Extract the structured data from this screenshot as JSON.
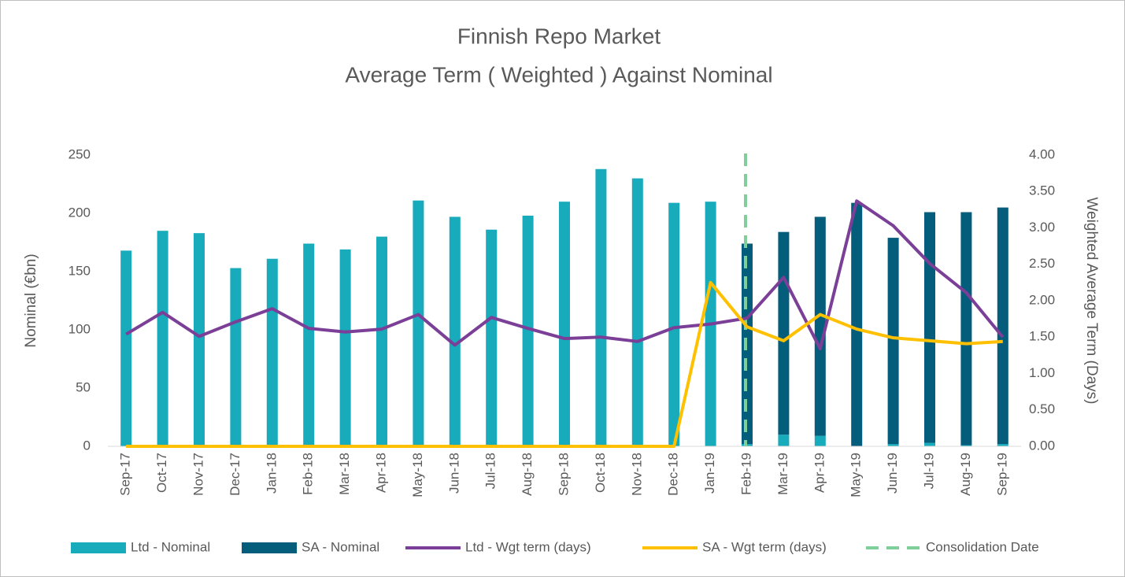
{
  "chart_data": {
    "type": "bar-line",
    "title": "Finnish Repo Market",
    "subtitle": "Average Term ( Weighted ) Against Nominal",
    "y_label": "Nominal (€bn)",
    "y2_label": "Weighted Average Term (Days)",
    "categories": [
      "Sep-17",
      "Oct-17",
      "Nov-17",
      "Dec-17",
      "Jan-18",
      "Feb-18",
      "Mar-18",
      "Apr-18",
      "May-18",
      "Jun-18",
      "Jul-18",
      "Aug-18",
      "Sep-18",
      "Oct-18",
      "Nov-18",
      "Dec-18",
      "Jan-19",
      "Feb-19",
      "Mar-19",
      "Apr-19",
      "May-19",
      "Jun-19",
      "Jul-19",
      "Aug-19",
      "Sep-19"
    ],
    "series": [
      {
        "name": "Ltd - Nominal",
        "kind": "bar",
        "color": "#17abbb",
        "values": [
          168,
          185,
          183,
          153,
          161,
          174,
          169,
          180,
          211,
          197,
          186,
          198,
          210,
          238,
          230,
          209,
          210,
          2,
          10,
          9,
          0,
          2,
          3,
          1,
          2
        ]
      },
      {
        "name": "SA - Nominal",
        "kind": "bar",
        "color": "#045d7a",
        "values": [
          0,
          0,
          0,
          0,
          0,
          0,
          0,
          0,
          0,
          0,
          0,
          0,
          0,
          0,
          0,
          0,
          0,
          172,
          174,
          188,
          209,
          177,
          198,
          200,
          203
        ]
      },
      {
        "name": "Ltd - Wgt term (days)",
        "kind": "line",
        "axis": "y2",
        "color": "#7b3f98",
        "values": [
          1.54,
          1.84,
          1.51,
          1.71,
          1.89,
          1.62,
          1.57,
          1.61,
          1.81,
          1.39,
          1.77,
          1.62,
          1.48,
          1.5,
          1.44,
          1.63,
          1.68,
          1.76,
          2.32,
          1.34,
          3.37,
          3.03,
          2.51,
          2.11,
          1.5
        ]
      },
      {
        "name": "SA - Wgt term (days)",
        "kind": "line",
        "axis": "y2",
        "color": "#ffc000",
        "values": [
          0,
          0,
          0,
          0,
          0,
          0,
          0,
          0,
          0,
          0,
          0,
          0,
          0,
          0,
          0,
          0,
          2.25,
          1.64,
          1.45,
          1.81,
          1.61,
          1.49,
          1.45,
          1.41,
          1.44
        ]
      }
    ],
    "marker": {
      "name": "Consolidation Date",
      "color": "#7fcf9b",
      "x": "Feb-19"
    },
    "ylim": [
      0,
      250
    ],
    "yticks": [
      0,
      50,
      100,
      150,
      200,
      250
    ],
    "y2lim": [
      0,
      4
    ],
    "y2ticks": [
      {
        "value": 0,
        "label": "0.00"
      },
      {
        "value": 0.5,
        "label": "0.50"
      },
      {
        "value": 1,
        "label": "1.00"
      },
      {
        "value": 1.5,
        "label": "1.50"
      },
      {
        "value": 2,
        "label": "2.00"
      },
      {
        "value": 2.5,
        "label": "2.50"
      },
      {
        "value": 3,
        "label": "3.00"
      },
      {
        "value": 3.5,
        "label": "3.50"
      },
      {
        "value": 4,
        "label": "4.00"
      }
    ],
    "stacked": true,
    "grid": false,
    "legend": "bottom"
  }
}
